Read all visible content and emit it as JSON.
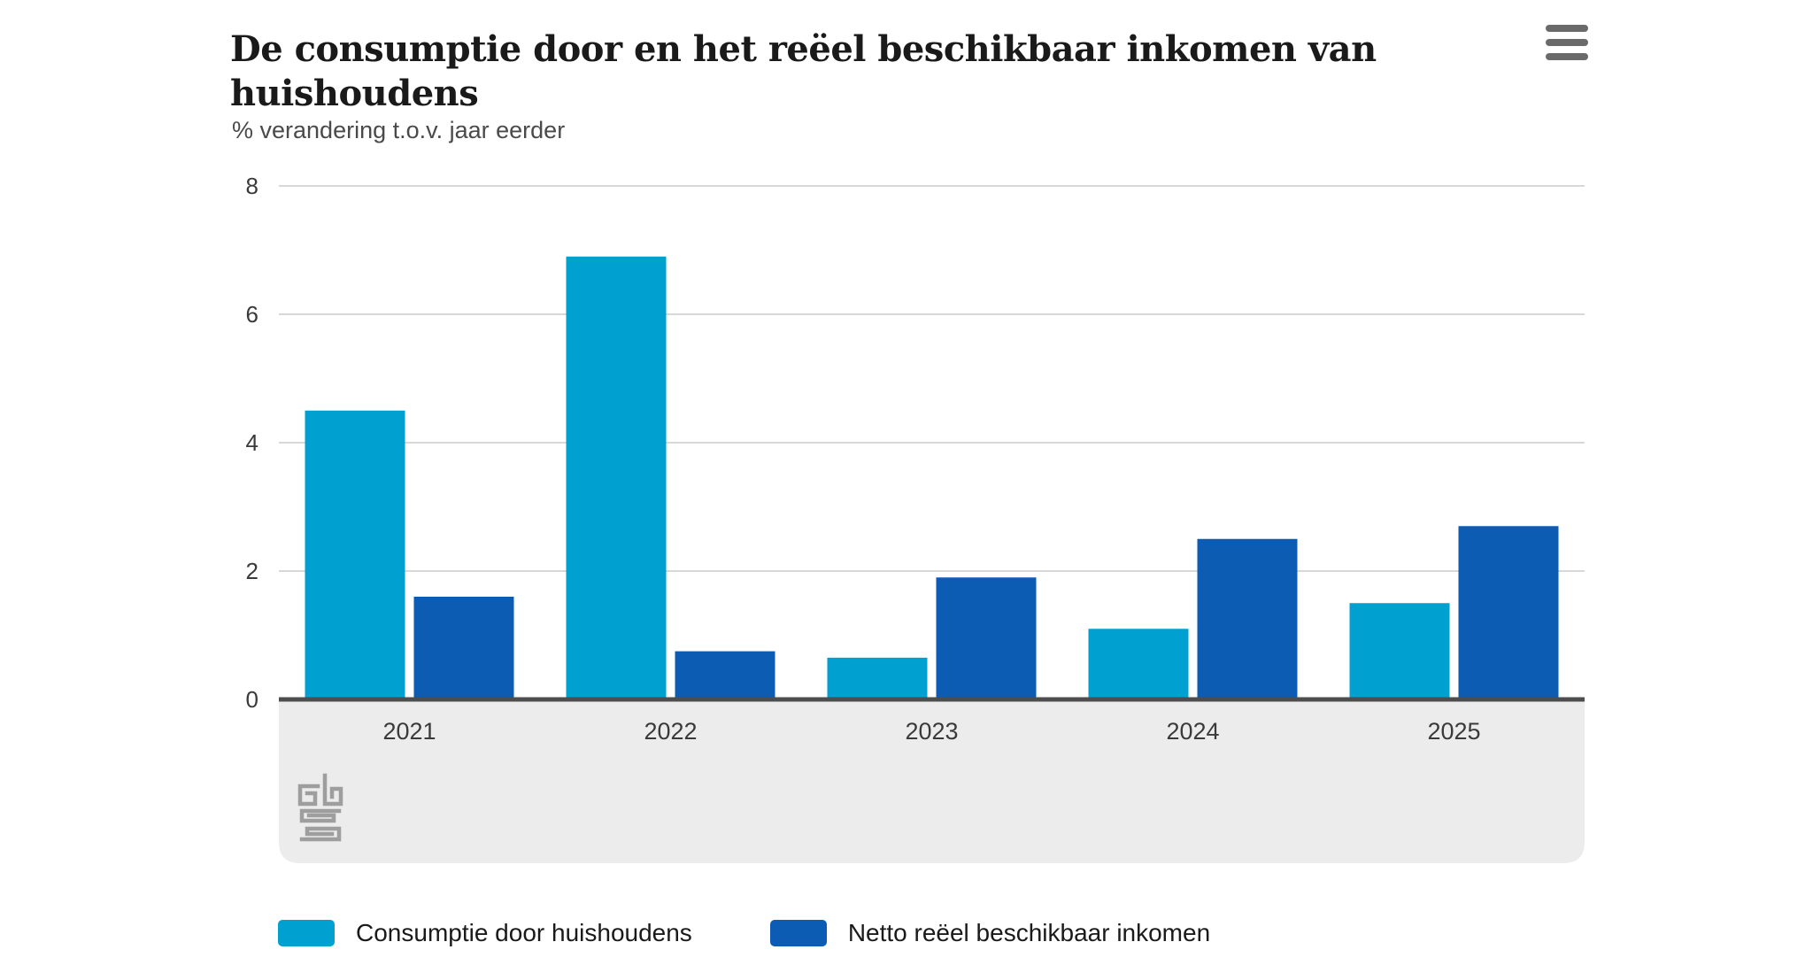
{
  "header": {
    "title": "De consumptie door en het reëel beschikbaar inkomen van huishoudens",
    "menu_icon": "hamburger-menu"
  },
  "chart_data": {
    "type": "bar",
    "title": "De consumptie door en het reëel beschikbaar inkomen van huishoudens",
    "subtitle": "% verandering t.o.v. jaar eerder",
    "ylabel": "% verandering t.o.v. jaar eerder",
    "xlabel": "",
    "categories": [
      "2021",
      "2022",
      "2023",
      "2024",
      "2025"
    ],
    "series": [
      {
        "name": "Consumptie door huishoudens",
        "color": "#00a0d1",
        "values": [
          4.5,
          6.9,
          0.65,
          1.1,
          1.5
        ]
      },
      {
        "name": "Netto reëel beschikbaar inkomen",
        "color": "#0d5cb4",
        "values": [
          1.6,
          0.75,
          1.9,
          2.5,
          2.7
        ]
      }
    ],
    "ylim": [
      0,
      8
    ],
    "yticks": [
      0,
      2,
      4,
      6,
      8
    ],
    "grid": true,
    "legend_position": "bottom",
    "source_logo": "CBS"
  },
  "colors": {
    "series_light_blue": "#00a0d1",
    "series_dark_blue": "#0d5cb4",
    "gridline": "#d8d8d8",
    "axis_line": "#4d4d4d",
    "footer_band": "#ececec",
    "logo_gray": "#9e9e9e"
  }
}
